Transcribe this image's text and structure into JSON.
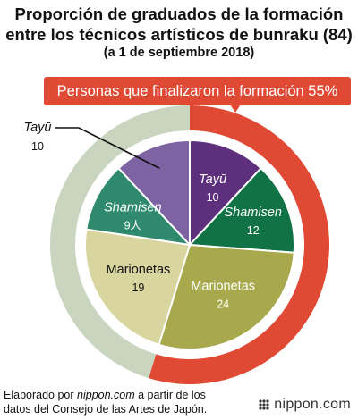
{
  "title_line1": "Proporción de graduados de la formación",
  "title_line2": "entre los técnicos artísticos de bunraku (84)",
  "subtitle": "(a 1 de septiembre 2018)",
  "banner": "Personas que finalizaron la formación 55%",
  "source_prefix": "Elaborado por ",
  "source_site": "nippon.com",
  "source_suffix_line1": " a partir de los",
  "source_line2": "datos del Consejo de las Artes de Japón.",
  "logo": "nippon.com",
  "colors": {
    "outer_finished": "#e04a35",
    "outer_other": "#c9d5bf",
    "tayu_dark": "#5d2f7d",
    "shamisen_dark": "#117345",
    "marionetas_dark": "#a8a94c",
    "tayu_light": "#7e63a3",
    "shamisen_light": "#2f8a6d",
    "marionetas_light": "#d8d59f"
  },
  "chart_data": {
    "type": "pie",
    "title": "Proporción de graduados de la formación entre los técnicos artísticos de bunraku (84)",
    "subtitle": "(a 1 de septiembre 2018)",
    "total": 84,
    "outer_ring": [
      {
        "name": "Personas que finalizaron la formación",
        "percent": 55,
        "value": 46
      },
      {
        "name": "",
        "value": 38
      }
    ],
    "inner_pie": [
      {
        "name": "Tayū",
        "value": 10,
        "group": "finished"
      },
      {
        "name": "Shamisen",
        "value": 12,
        "group": "finished"
      },
      {
        "name": "Marionetas",
        "value": 24,
        "group": "finished"
      },
      {
        "name": "Marionetas",
        "value": 19,
        "group": "other"
      },
      {
        "name": "Shamisen",
        "value": "9人",
        "group": "other"
      },
      {
        "name": "Tayū",
        "value": 10,
        "group": "other"
      }
    ]
  }
}
